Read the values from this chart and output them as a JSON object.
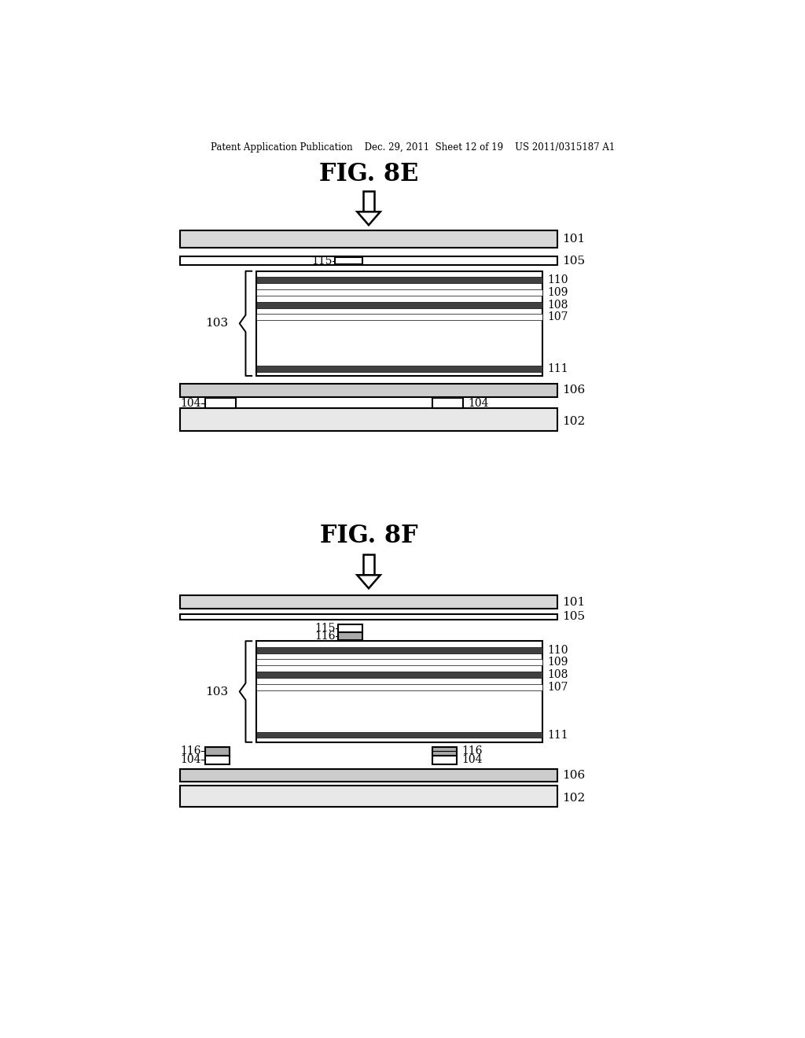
{
  "bg_color": "#ffffff",
  "line_color": "#000000",
  "header": "Patent Application Publication    Dec. 29, 2011  Sheet 12 of 19    US 2011/0315187 A1",
  "fig8E_title": "FIG. 8E",
  "fig8F_title": "FIG. 8F"
}
